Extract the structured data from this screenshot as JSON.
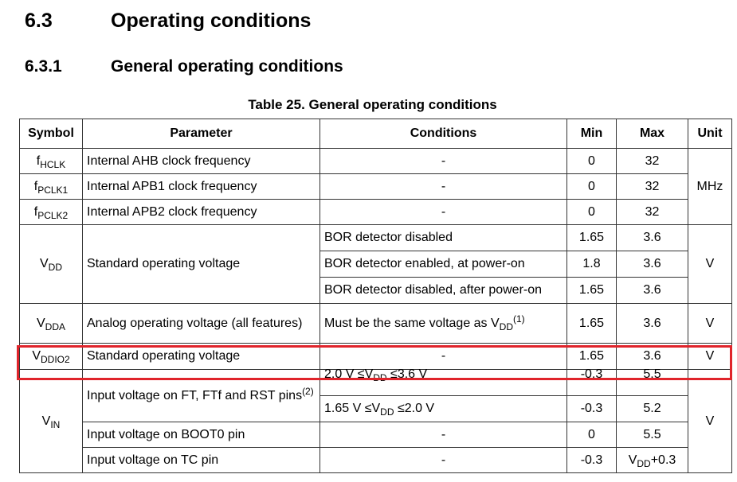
{
  "heading1": {
    "number": "6.3",
    "title": "Operating conditions"
  },
  "heading2": {
    "number": "6.3.1",
    "title": "General operating conditions"
  },
  "table_caption": "Table 25. General operating conditions",
  "columns": {
    "symbol": "Symbol",
    "parameter": "Parameter",
    "conditions": "Conditions",
    "min": "Min",
    "max": "Max",
    "unit": "Unit"
  },
  "rows": [
    {
      "sym": "f",
      "sym_sub": "HCLK",
      "param": "Internal AHB clock frequency",
      "cond": "-",
      "min": "0",
      "max": "32"
    },
    {
      "sym": "f",
      "sym_sub": "PCLK1",
      "param": "Internal APB1 clock frequency",
      "cond": "-",
      "min": "0",
      "max": "32"
    },
    {
      "sym": "f",
      "sym_sub": "PCLK2",
      "param": "Internal APB2 clock frequency",
      "cond": "-",
      "min": "0",
      "max": "32"
    },
    {
      "sym": "V",
      "sym_sub": "DD",
      "param": "Standard operating voltage",
      "cond": "BOR detector disabled",
      "min": "1.65",
      "max": "3.6"
    },
    {
      "cond": "BOR detector enabled, at power-on",
      "min": "1.8",
      "max": "3.6"
    },
    {
      "cond": "BOR detector disabled, after power-on",
      "min": "1.65",
      "max": "3.6"
    },
    {
      "sym": "V",
      "sym_sub": "DDA",
      "param": "Analog operating voltage (all features)",
      "cond_pre": "Must be the same voltage as V",
      "cond_sub": "DD",
      "cond_sup": "(1)",
      "min": "1.65",
      "max": "3.6"
    },
    {
      "sym": "V",
      "sym_sub": "DDIO2",
      "param": "Standard operating voltage",
      "cond": "-",
      "min": "1.65",
      "max": "3.6"
    },
    {
      "sym": "V",
      "sym_sub": "IN",
      "param": "Input voltage on FT, FTf and RST pins",
      "param_sup": "(2)",
      "cond_a": "2.0 V ≤V",
      "cond_sub": "DD",
      "cond_b": " ≤3.6 V",
      "min": "-0.3",
      "max": "5.5"
    },
    {
      "cond_a": "1.65 V ≤V",
      "cond_sub": "DD",
      "cond_b": " ≤2.0 V",
      "min": "-0.3",
      "max": "5.2"
    },
    {
      "param": "Input voltage on BOOT0 pin",
      "cond": "-",
      "min": "0",
      "max": "5.5"
    },
    {
      "param": "Input voltage on TC pin",
      "cond": "-",
      "min": "-0.3",
      "max_pre": "V",
      "max_sub": "DD",
      "max_post": "+0.3"
    }
  ],
  "units": {
    "freq": "MHz",
    "vdd": "V",
    "vdda": "V",
    "vddio2": "V",
    "vin": "V"
  },
  "colors": {
    "highlight": "#e0242b"
  }
}
